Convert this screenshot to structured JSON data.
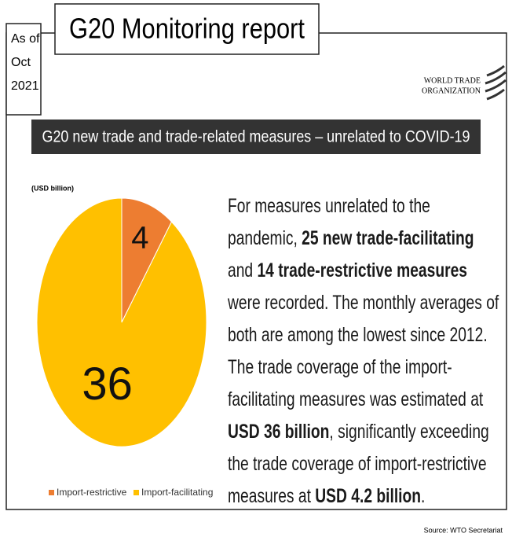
{
  "header": {
    "date": [
      "As of",
      "Oct",
      "2021"
    ],
    "title": "G20 Monitoring report",
    "logo": [
      "WORLD TRADE",
      "ORGANIZATION"
    ]
  },
  "banner": "G20 new trade and trade-related measures – unrelated to COVID-19",
  "chart_data": {
    "type": "pie",
    "unit": "(USD billion)",
    "categories": [
      "Import-restrictive",
      "Import-facilitating"
    ],
    "values": [
      4,
      36
    ],
    "colors": [
      "#ed7d31",
      "#ffc000"
    ]
  },
  "paragraph": [
    {
      "text": "For measures unrelated to the pandemic, ",
      "bold": false
    },
    {
      "text": "25 new trade-facilitating",
      "bold": true
    },
    {
      "text": " and ",
      "bold": false
    },
    {
      "text": "14 trade-restrictive measures",
      "bold": true
    },
    {
      "text": " were recorded. The monthly averages of both are among the lowest since 2012. The trade coverage of the import-facilitating measures was estimated at ",
      "bold": false
    },
    {
      "text": "USD 36 billion",
      "bold": true
    },
    {
      "text": ", significantly exceeding the trade coverage of import-restrictive measures at ",
      "bold": false
    },
    {
      "text": "USD 4.2 billion",
      "bold": true
    },
    {
      "text": ".",
      "bold": false
    }
  ],
  "source": "Source: WTO Secretariat"
}
